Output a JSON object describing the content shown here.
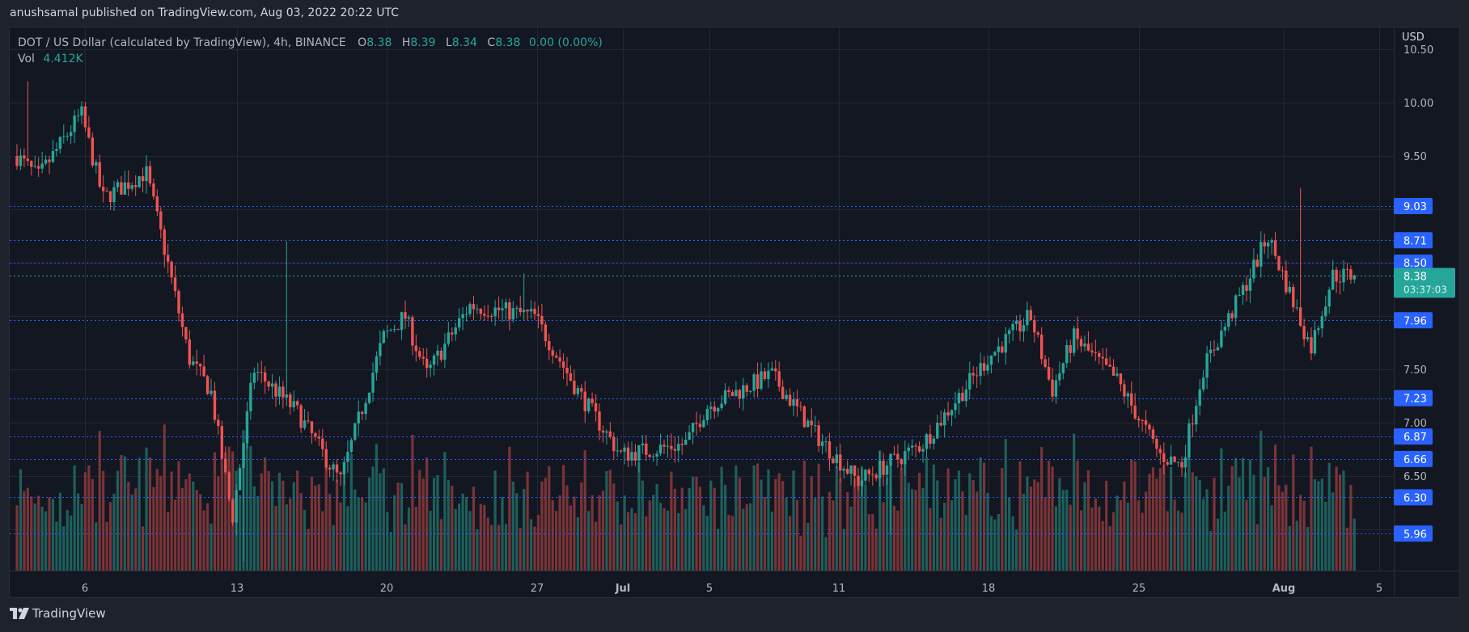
{
  "header": {
    "published_line": "anushsamal published on TradingView.com, Aug 03, 2022 20:22 UTC"
  },
  "legend": {
    "symbol_title": "DOT / US Dollar (calculated by TradingView), 4h, BINANCE",
    "open_label": "O",
    "open": "8.38",
    "high_label": "H",
    "high": "8.39",
    "low_label": "L",
    "low": "8.34",
    "close_label": "C",
    "close": "8.38",
    "change": "0.00 (0.00%)",
    "vol_label": "Vol",
    "vol_value": "4.412K"
  },
  "price_axis": {
    "currency": "USD",
    "ticks": [
      "10.50",
      "10.00",
      "9.50",
      "7.50",
      "7.00",
      "6.50"
    ],
    "horizontal_levels": [
      "9.03",
      "8.71",
      "8.50",
      "7.96",
      "7.23",
      "6.87",
      "6.66",
      "6.30",
      "5.96"
    ],
    "current_price": "8.38",
    "countdown": "03:37:03"
  },
  "time_axis": {
    "ticks": [
      {
        "label": "6",
        "bold": false
      },
      {
        "label": "13",
        "bold": false
      },
      {
        "label": "20",
        "bold": false
      },
      {
        "label": "27",
        "bold": false
      },
      {
        "label": "Jul",
        "bold": true
      },
      {
        "label": "5",
        "bold": false
      },
      {
        "label": "11",
        "bold": false
      },
      {
        "label": "18",
        "bold": false
      },
      {
        "label": "25",
        "bold": false
      },
      {
        "label": "Aug",
        "bold": true
      },
      {
        "label": "5",
        "bold": false
      }
    ]
  },
  "colors": {
    "background": "#131722",
    "page": "#1e222d",
    "grid": "#242833",
    "up": "#26a69a",
    "down": "#ef5350",
    "vol_up": "#1e5f5b",
    "vol_down": "#7a3438",
    "level_line": "#2962ff",
    "level_label_bg": "#2962ff",
    "current_price_bg": "#26a69a",
    "axis_text": "#b2b5be"
  },
  "footer": {
    "brand": "TradingView"
  },
  "chart_data": {
    "type": "candlestick",
    "title": "DOT / US Dollar (calculated by TradingView), 4h, BINANCE",
    "xlabel": "",
    "ylabel": "USD",
    "ylim": [
      5.55,
      10.55
    ],
    "grid": true,
    "x_tick_labels": [
      "6",
      "13",
      "20",
      "27",
      "Jul",
      "5",
      "11",
      "18",
      "25",
      "Aug",
      "5"
    ],
    "y_tick_labels": [
      "10.50",
      "10.00",
      "9.50",
      "7.50",
      "7.00",
      "6.50"
    ],
    "horizontal_levels": [
      9.03,
      8.71,
      8.5,
      7.96,
      7.23,
      6.87,
      6.66,
      6.3,
      5.96
    ],
    "last": {
      "open": 8.38,
      "high": 8.39,
      "low": 8.34,
      "close": 8.38,
      "volume": "4.412K",
      "change": "0.00 (0.00%)"
    },
    "price_path_anchors": [
      {
        "date": "Jun 3",
        "price": 9.5
      },
      {
        "date": "Jun 3",
        "price": 10.2,
        "note": "wick high"
      },
      {
        "date": "Jun 4",
        "price": 9.3
      },
      {
        "date": "Jun 6",
        "price": 9.9
      },
      {
        "date": "Jun 7",
        "price": 9.1
      },
      {
        "date": "Jun 9",
        "price": 9.35
      },
      {
        "date": "Jun 10",
        "price": 8.5
      },
      {
        "date": "Jun 11",
        "price": 7.6
      },
      {
        "date": "Jun 12",
        "price": 7.3
      },
      {
        "date": "Jun 13",
        "price": 6.1
      },
      {
        "date": "Jun 13",
        "price": 5.7,
        "note": "wick low"
      },
      {
        "date": "Jun 14",
        "price": 7.5
      },
      {
        "date": "Jun 15",
        "price": 8.7,
        "note": "wick high"
      },
      {
        "date": "Jun 16",
        "price": 7.1
      },
      {
        "date": "Jun 18",
        "price": 6.45
      },
      {
        "date": "Jun 20",
        "price": 7.8
      },
      {
        "date": "Jun 21",
        "price": 8.0
      },
      {
        "date": "Jun 22",
        "price": 7.45
      },
      {
        "date": "Jun 24",
        "price": 8.1
      },
      {
        "date": "Jun 26",
        "price": 8.4,
        "note": "wick high"
      },
      {
        "date": "Jun 27",
        "price": 8.0
      },
      {
        "date": "Jun 29",
        "price": 7.3
      },
      {
        "date": "Jul 1",
        "price": 6.7
      },
      {
        "date": "Jul 4",
        "price": 6.8
      },
      {
        "date": "Jul 5",
        "price": 7.15
      },
      {
        "date": "Jul 8",
        "price": 7.45
      },
      {
        "date": "Jul 10",
        "price": 6.9
      },
      {
        "date": "Jul 12",
        "price": 6.45
      },
      {
        "date": "Jul 13",
        "price": 5.95,
        "note": "wick low"
      },
      {
        "date": "Jul 15",
        "price": 6.8
      },
      {
        "date": "Jul 18",
        "price": 7.6
      },
      {
        "date": "Jul 20",
        "price": 8.0
      },
      {
        "date": "Jul 21",
        "price": 7.3
      },
      {
        "date": "Jul 22",
        "price": 7.8
      },
      {
        "date": "Jul 24",
        "price": 7.4
      },
      {
        "date": "Jul 26",
        "price": 6.7
      },
      {
        "date": "Jul 27",
        "price": 6.6
      },
      {
        "date": "Jul 28",
        "price": 7.5
      },
      {
        "date": "Jul 30",
        "price": 8.3
      },
      {
        "date": "Jul 31",
        "price": 8.75
      },
      {
        "date": "Aug 1",
        "price": 9.2,
        "note": "wick high"
      },
      {
        "date": "Aug 2",
        "price": 7.7
      },
      {
        "date": "Aug 3",
        "price": 8.38
      }
    ]
  }
}
